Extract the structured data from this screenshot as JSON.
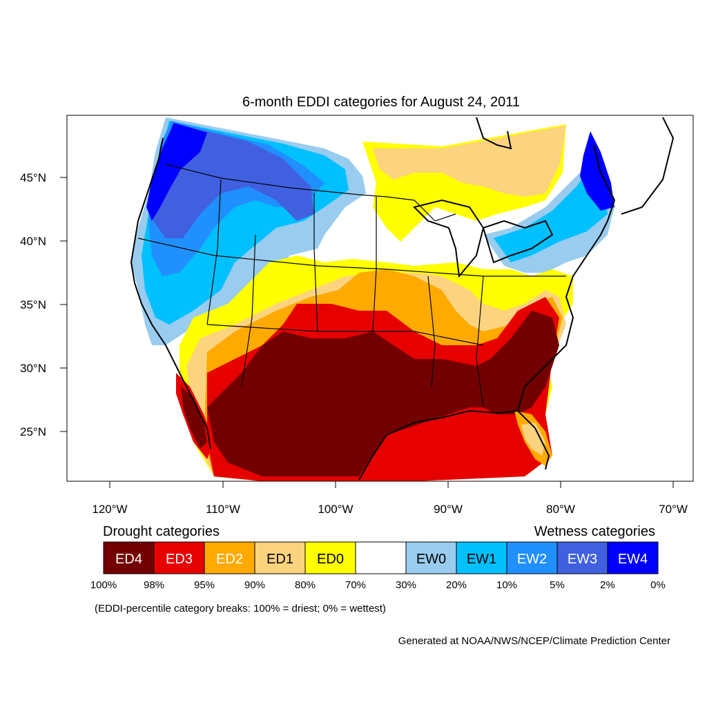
{
  "title": "6-month EDDI categories for August 24, 2011",
  "axes": {
    "lon_labels": [
      "120°W",
      "110°W",
      "100°W",
      "90°W",
      "80°W",
      "70°W"
    ],
    "lat_labels": [
      "45°N",
      "40°N",
      "35°N",
      "30°N",
      "25°N"
    ]
  },
  "legend": {
    "drought_heading": "Drought categories",
    "wetness_heading": "Wetness categories",
    "categories": [
      {
        "label": "ED4",
        "color": "#730000",
        "text_color": "#ffffff"
      },
      {
        "label": "ED3",
        "color": "#e60000",
        "text_color": "#ffffff"
      },
      {
        "label": "ED2",
        "color": "#ffaa00",
        "text_color": "#ffffff"
      },
      {
        "label": "ED1",
        "color": "#fcd37f",
        "text_color": "#000000"
      },
      {
        "label": "ED0",
        "color": "#ffff00",
        "text_color": "#000000"
      },
      {
        "label": "",
        "color": "#ffffff",
        "text_color": "#000000"
      },
      {
        "label": "EW0",
        "color": "#99ccee",
        "text_color": "#000000"
      },
      {
        "label": "EW1",
        "color": "#00c0ff",
        "text_color": "#000000"
      },
      {
        "label": "EW2",
        "color": "#2090ff",
        "text_color": "#ffffff"
      },
      {
        "label": "EW3",
        "color": "#4060e0",
        "text_color": "#ffffff"
      },
      {
        "label": "EW4",
        "color": "#0000ff",
        "text_color": "#ffffff"
      }
    ],
    "breaks": [
      "100%",
      "98%",
      "95%",
      "90%",
      "80%",
      "70%",
      "30%",
      "20%",
      "10%",
      "5%",
      "2%",
      "0%"
    ]
  },
  "note": "(EDDI-percentile category breaks: 100% = driest; 0% = wettest)",
  "credit": "Generated at NOAA/NWS/NCEP/Climate Prediction Center"
}
